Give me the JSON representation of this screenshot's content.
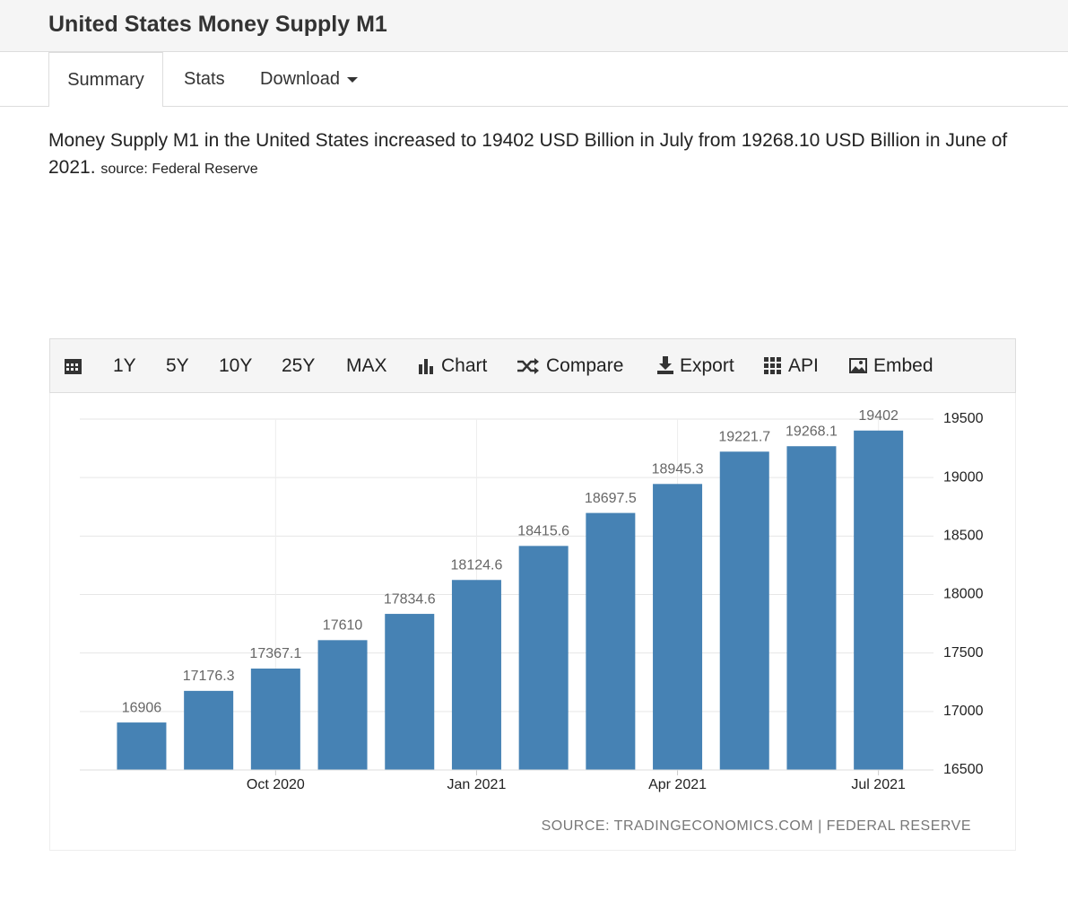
{
  "header": {
    "title": "United States Money Supply M1"
  },
  "tabs": [
    "Summary",
    "Stats",
    "Download"
  ],
  "summary": {
    "text": "Money Supply M1 in the United States increased to 19402 USD Billion in July from 19268.10 USD Billion in June of 2021.",
    "source": "source: Federal Reserve"
  },
  "toolbar": [
    "1Y",
    "5Y",
    "10Y",
    "25Y",
    "MAX",
    "Chart",
    "Compare",
    "Export",
    "API",
    "Embed"
  ],
  "chart_data": {
    "type": "bar",
    "color": "#4682b4",
    "grid": true,
    "categories": [
      null,
      null,
      "Oct 2020",
      null,
      null,
      "Jan 2021",
      null,
      null,
      "Apr 2021",
      null,
      null,
      "Jul 2021"
    ],
    "values": [
      16906,
      17176.3,
      17367.1,
      17610,
      17834.6,
      18124.6,
      18415.6,
      18697.5,
      18945.3,
      19221.7,
      19268.1,
      19402
    ],
    "ylim": [
      16500,
      19500
    ],
    "yticks": [
      16500,
      17000,
      17500,
      18000,
      18500,
      19000,
      19500
    ],
    "source": "SOURCE: TRADINGECONOMICS.COM | FEDERAL RESERVE"
  }
}
